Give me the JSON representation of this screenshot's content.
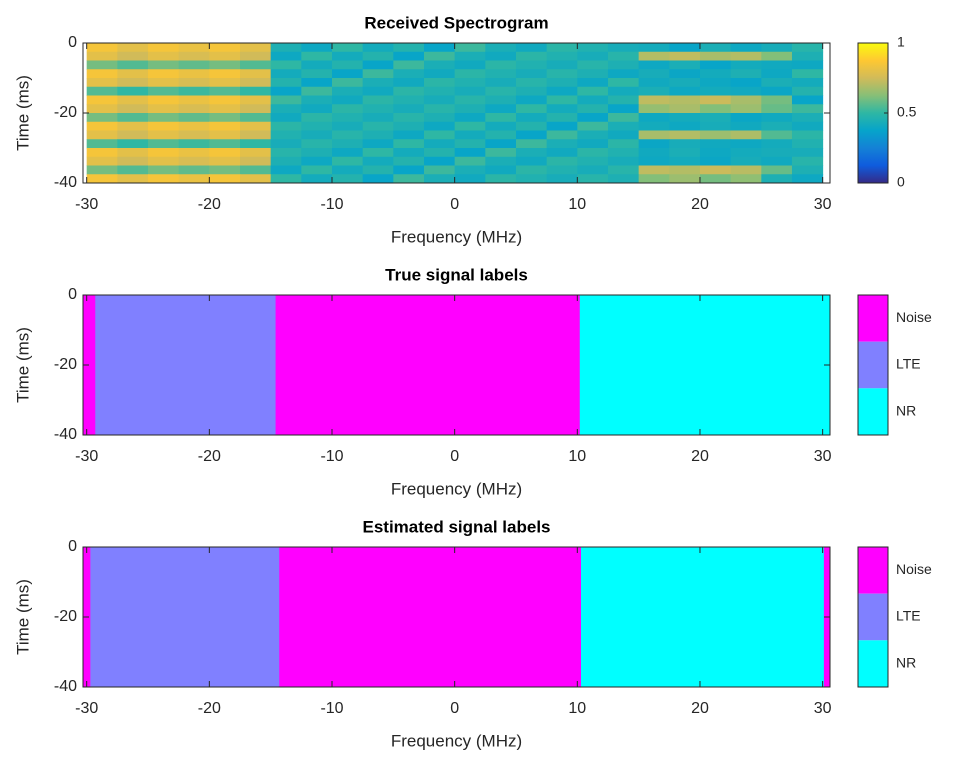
{
  "chart_data": [
    {
      "type": "heatmap",
      "title": "Received Spectrogram",
      "x_label": "Frequency (MHz)",
      "y_label": "Time (ms)",
      "x": [
        -28.75,
        -26.25,
        -23.75,
        -21.25,
        -18.75,
        -16.25,
        -13.75,
        -11.25,
        -8.75,
        -6.25,
        -3.75,
        -1.25,
        1.25,
        3.75,
        6.25,
        8.75,
        11.25,
        13.75,
        16.25,
        18.75,
        21.25,
        23.75,
        26.25,
        28.75
      ],
      "y": [
        -1.25,
        -3.75,
        -6.25,
        -8.75,
        -11.25,
        -13.75,
        -16.25,
        -18.75,
        -21.25,
        -23.75,
        -26.25,
        -28.75,
        -31.25,
        -33.75,
        -36.25,
        -38.75
      ],
      "z": [
        [
          0.85,
          0.8,
          0.85,
          0.82,
          0.85,
          0.8,
          0.45,
          0.4,
          0.5,
          0.42,
          0.47,
          0.38,
          0.52,
          0.44,
          0.41,
          0.49,
          0.46,
          0.43,
          0.42,
          0.38,
          0.44,
          0.4,
          0.43,
          0.48
        ],
        [
          0.8,
          0.75,
          0.8,
          0.77,
          0.8,
          0.75,
          0.4,
          0.5,
          0.42,
          0.47,
          0.38,
          0.52,
          0.44,
          0.41,
          0.49,
          0.46,
          0.43,
          0.48,
          0.7,
          0.72,
          0.68,
          0.7,
          0.62,
          0.45
        ],
        [
          0.6,
          0.55,
          0.6,
          0.57,
          0.6,
          0.55,
          0.5,
          0.42,
          0.47,
          0.38,
          0.52,
          0.44,
          0.41,
          0.49,
          0.46,
          0.43,
          0.48,
          0.45,
          0.4,
          0.44,
          0.38,
          0.42,
          0.41,
          0.4
        ],
        [
          0.85,
          0.8,
          0.85,
          0.82,
          0.85,
          0.8,
          0.42,
          0.47,
          0.38,
          0.52,
          0.44,
          0.41,
          0.49,
          0.46,
          0.43,
          0.48,
          0.45,
          0.4,
          0.43,
          0.39,
          0.42,
          0.45,
          0.4,
          0.5
        ],
        [
          0.8,
          0.75,
          0.8,
          0.77,
          0.8,
          0.75,
          0.47,
          0.38,
          0.52,
          0.44,
          0.41,
          0.49,
          0.46,
          0.43,
          0.48,
          0.45,
          0.4,
          0.5,
          0.41,
          0.43,
          0.4,
          0.38,
          0.44,
          0.42
        ],
        [
          0.55,
          0.5,
          0.55,
          0.52,
          0.55,
          0.5,
          0.38,
          0.52,
          0.44,
          0.41,
          0.49,
          0.46,
          0.43,
          0.48,
          0.45,
          0.4,
          0.5,
          0.42,
          0.44,
          0.4,
          0.42,
          0.41,
          0.39,
          0.47
        ],
        [
          0.85,
          0.8,
          0.85,
          0.82,
          0.85,
          0.8,
          0.52,
          0.44,
          0.41,
          0.49,
          0.46,
          0.43,
          0.48,
          0.45,
          0.4,
          0.5,
          0.42,
          0.47,
          0.72,
          0.7,
          0.74,
          0.68,
          0.6,
          0.38
        ],
        [
          0.8,
          0.75,
          0.8,
          0.77,
          0.8,
          0.75,
          0.44,
          0.41,
          0.49,
          0.46,
          0.43,
          0.48,
          0.45,
          0.4,
          0.5,
          0.42,
          0.47,
          0.38,
          0.65,
          0.68,
          0.62,
          0.66,
          0.58,
          0.52
        ],
        [
          0.6,
          0.55,
          0.6,
          0.57,
          0.6,
          0.55,
          0.41,
          0.49,
          0.46,
          0.43,
          0.48,
          0.45,
          0.4,
          0.5,
          0.42,
          0.47,
          0.38,
          0.52,
          0.4,
          0.42,
          0.44,
          0.39,
          0.41,
          0.44
        ],
        [
          0.85,
          0.8,
          0.85,
          0.82,
          0.85,
          0.8,
          0.49,
          0.46,
          0.43,
          0.48,
          0.45,
          0.4,
          0.5,
          0.42,
          0.47,
          0.38,
          0.52,
          0.44,
          0.42,
          0.4,
          0.43,
          0.41,
          0.44,
          0.41
        ],
        [
          0.8,
          0.75,
          0.8,
          0.77,
          0.8,
          0.75,
          0.46,
          0.43,
          0.48,
          0.45,
          0.4,
          0.5,
          0.42,
          0.47,
          0.38,
          0.52,
          0.44,
          0.41,
          0.68,
          0.7,
          0.66,
          0.69,
          0.55,
          0.49
        ],
        [
          0.55,
          0.5,
          0.55,
          0.52,
          0.55,
          0.5,
          0.43,
          0.48,
          0.45,
          0.4,
          0.5,
          0.42,
          0.47,
          0.38,
          0.52,
          0.44,
          0.41,
          0.49,
          0.39,
          0.43,
          0.41,
          0.4,
          0.42,
          0.46
        ],
        [
          0.85,
          0.8,
          0.85,
          0.82,
          0.85,
          0.8,
          0.48,
          0.45,
          0.4,
          0.5,
          0.42,
          0.47,
          0.38,
          0.52,
          0.44,
          0.41,
          0.49,
          0.46,
          0.41,
          0.44,
          0.4,
          0.42,
          0.43,
          0.43
        ],
        [
          0.8,
          0.75,
          0.8,
          0.77,
          0.8,
          0.75,
          0.45,
          0.4,
          0.5,
          0.42,
          0.47,
          0.38,
          0.52,
          0.44,
          0.41,
          0.49,
          0.46,
          0.43,
          0.4,
          0.42,
          0.39,
          0.43,
          0.41,
          0.48
        ],
        [
          0.6,
          0.55,
          0.6,
          0.57,
          0.6,
          0.55,
          0.4,
          0.5,
          0.42,
          0.47,
          0.38,
          0.52,
          0.44,
          0.41,
          0.49,
          0.46,
          0.43,
          0.48,
          0.72,
          0.7,
          0.74,
          0.71,
          0.58,
          0.45
        ],
        [
          0.85,
          0.8,
          0.85,
          0.82,
          0.85,
          0.8,
          0.5,
          0.42,
          0.47,
          0.38,
          0.52,
          0.44,
          0.41,
          0.49,
          0.46,
          0.43,
          0.48,
          0.45,
          0.62,
          0.66,
          0.6,
          0.64,
          0.45,
          0.4
        ]
      ],
      "colormap": [
        "#352a87",
        "#0f5cdd",
        "#1481d6",
        "#06a4ca",
        "#2eb7a4",
        "#87bf77",
        "#d1bb59",
        "#fec832",
        "#f9fb0e"
      ],
      "clim": [
        0,
        1
      ],
      "cticks": [
        0,
        0.5,
        1
      ],
      "xlim": [
        -30.3,
        30.6
      ],
      "ylim": [
        -40,
        0
      ],
      "xticks": [
        -30,
        -20,
        -10,
        0,
        10,
        20,
        30
      ],
      "yticks": [
        0,
        -20,
        -40
      ]
    },
    {
      "type": "label_map",
      "title": "True signal labels",
      "x_label": "Frequency (MHz)",
      "y_label": "Time (ms)",
      "classes": [
        {
          "name": "Noise",
          "color": "#ff00ff"
        },
        {
          "name": "LTE",
          "color": "#8080ff"
        },
        {
          "name": "NR",
          "color": "#00ffff"
        }
      ],
      "segments": [
        {
          "from": -30.3,
          "to": -29.3,
          "class": 0
        },
        {
          "from": -29.3,
          "to": -14.6,
          "class": 1
        },
        {
          "from": -14.6,
          "to": 10.2,
          "class": 0
        },
        {
          "from": 10.2,
          "to": 30.6,
          "class": 2
        }
      ],
      "xlim": [
        -30.3,
        30.6
      ],
      "ylim": [
        -40,
        0
      ],
      "xticks": [
        -30,
        -20,
        -10,
        0,
        10,
        20,
        30
      ],
      "yticks": [
        0,
        -20,
        -40
      ]
    },
    {
      "type": "label_map",
      "title": "Estimated signal labels",
      "x_label": "Frequency (MHz)",
      "y_label": "Time (ms)",
      "classes": [
        {
          "name": "Noise",
          "color": "#ff00ff"
        },
        {
          "name": "LTE",
          "color": "#8080ff"
        },
        {
          "name": "NR",
          "color": "#00ffff"
        }
      ],
      "segments": [
        {
          "from": -30.3,
          "to": -29.7,
          "class": 0
        },
        {
          "from": -29.7,
          "to": -14.3,
          "class": 1
        },
        {
          "from": -14.3,
          "to": 10.3,
          "class": 0
        },
        {
          "from": 10.3,
          "to": 30.1,
          "class": 2
        },
        {
          "from": 30.1,
          "to": 30.6,
          "class": 0
        }
      ],
      "xlim": [
        -30.3,
        30.6
      ],
      "ylim": [
        -40,
        0
      ],
      "xticks": [
        -30,
        -20,
        -10,
        0,
        10,
        20,
        30
      ],
      "yticks": [
        0,
        -20,
        -40
      ]
    }
  ]
}
